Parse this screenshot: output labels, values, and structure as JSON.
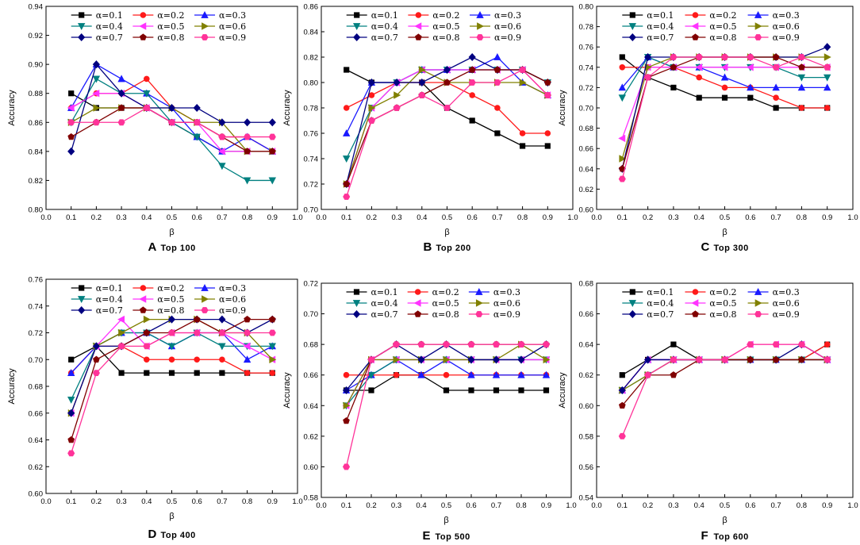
{
  "colors": {
    "a0.1": "#000000",
    "a0.2": "#ff1a1a",
    "a0.3": "#1a1aff",
    "a0.4": "#008080",
    "a0.5": "#ff33ff",
    "a0.6": "#808000",
    "a0.7": "#000080",
    "a0.8": "#800000",
    "a0.9": "#ff3399"
  },
  "chart_data": [
    {
      "type": "line",
      "letter": "A",
      "subtitle": "Top 100",
      "xlabel": "β",
      "ylabel": "Accuracy",
      "xlim": [
        0,
        1
      ],
      "ylim": [
        0.8,
        0.94
      ],
      "ystep": 0.02,
      "x": [
        0.1,
        0.2,
        0.3,
        0.4,
        0.5,
        0.6,
        0.7,
        0.8,
        0.9
      ],
      "series": [
        {
          "name": "α=0.1",
          "marker": "square",
          "values": [
            0.88,
            0.87,
            0.87,
            0.87,
            0.86,
            0.85,
            0.84,
            0.84,
            0.84
          ]
        },
        {
          "name": "α=0.2",
          "marker": "circle",
          "values": [
            0.87,
            0.88,
            0.88,
            0.89,
            0.87,
            0.86,
            0.85,
            0.85,
            0.84
          ]
        },
        {
          "name": "α=0.3",
          "marker": "triangle-up",
          "values": [
            0.87,
            0.9,
            0.89,
            0.88,
            0.87,
            0.85,
            0.84,
            0.85,
            0.84
          ]
        },
        {
          "name": "α=0.4",
          "marker": "triangle-down",
          "values": [
            0.86,
            0.89,
            0.88,
            0.88,
            0.86,
            0.85,
            0.83,
            0.82,
            0.82
          ]
        },
        {
          "name": "α=0.5",
          "marker": "triangle-left",
          "values": [
            0.87,
            0.88,
            0.88,
            0.87,
            0.86,
            0.86,
            0.84,
            0.84,
            0.84
          ]
        },
        {
          "name": "α=0.6",
          "marker": "triangle-right",
          "values": [
            0.86,
            0.87,
            0.87,
            0.87,
            0.87,
            0.86,
            0.86,
            0.84,
            0.84
          ]
        },
        {
          "name": "α=0.7",
          "marker": "diamond",
          "values": [
            0.84,
            0.9,
            0.88,
            0.87,
            0.87,
            0.87,
            0.86,
            0.86,
            0.86
          ]
        },
        {
          "name": "α=0.8",
          "marker": "pentagon",
          "values": [
            0.85,
            0.86,
            0.87,
            0.87,
            0.86,
            0.86,
            0.85,
            0.84,
            0.84
          ]
        },
        {
          "name": "α=0.9",
          "marker": "hexagon",
          "values": [
            0.86,
            0.86,
            0.86,
            0.87,
            0.86,
            0.86,
            0.85,
            0.85,
            0.85
          ]
        }
      ]
    },
    {
      "type": "line",
      "letter": "B",
      "subtitle": "Top 200",
      "xlabel": "β",
      "ylabel": "Accuracy",
      "xlim": [
        0,
        1
      ],
      "ylim": [
        0.7,
        0.86
      ],
      "ystep": 0.02,
      "x": [
        0.1,
        0.2,
        0.3,
        0.4,
        0.5,
        0.6,
        0.7,
        0.8,
        0.9
      ],
      "series": [
        {
          "name": "α=0.1",
          "marker": "square",
          "values": [
            0.81,
            0.8,
            0.8,
            0.8,
            0.78,
            0.77,
            0.76,
            0.75,
            0.75
          ]
        },
        {
          "name": "α=0.2",
          "marker": "circle",
          "values": [
            0.78,
            0.79,
            0.8,
            0.8,
            0.8,
            0.79,
            0.78,
            0.76,
            0.76
          ]
        },
        {
          "name": "α=0.3",
          "marker": "triangle-up",
          "values": [
            0.76,
            0.8,
            0.8,
            0.81,
            0.81,
            0.81,
            0.82,
            0.8,
            0.79
          ]
        },
        {
          "name": "α=0.4",
          "marker": "triangle-down",
          "values": [
            0.74,
            0.78,
            0.8,
            0.81,
            0.81,
            0.81,
            0.81,
            0.81,
            0.8
          ]
        },
        {
          "name": "α=0.5",
          "marker": "triangle-left",
          "values": [
            0.72,
            0.78,
            0.8,
            0.81,
            0.81,
            0.81,
            0.81,
            0.81,
            0.79
          ]
        },
        {
          "name": "α=0.6",
          "marker": "triangle-right",
          "values": [
            0.72,
            0.78,
            0.79,
            0.81,
            0.8,
            0.8,
            0.8,
            0.8,
            0.79
          ]
        },
        {
          "name": "α=0.7",
          "marker": "diamond",
          "values": [
            0.72,
            0.8,
            0.8,
            0.8,
            0.81,
            0.82,
            0.81,
            0.81,
            0.8
          ]
        },
        {
          "name": "α=0.8",
          "marker": "pentagon",
          "values": [
            0.72,
            0.77,
            0.78,
            0.79,
            0.8,
            0.81,
            0.81,
            0.81,
            0.8
          ]
        },
        {
          "name": "α=0.9",
          "marker": "hexagon",
          "values": [
            0.71,
            0.77,
            0.78,
            0.79,
            0.78,
            0.8,
            0.8,
            0.81,
            0.79
          ]
        }
      ]
    },
    {
      "type": "line",
      "letter": "C",
      "subtitle": "Top 300",
      "xlabel": "β",
      "ylabel": "Accuracy",
      "xlim": [
        0,
        1
      ],
      "ylim": [
        0.6,
        0.8
      ],
      "ystep": 0.02,
      "x": [
        0.1,
        0.2,
        0.3,
        0.4,
        0.5,
        0.6,
        0.7,
        0.8,
        0.9
      ],
      "series": [
        {
          "name": "α=0.1",
          "marker": "square",
          "values": [
            0.75,
            0.73,
            0.72,
            0.71,
            0.71,
            0.71,
            0.7,
            0.7,
            0.7
          ]
        },
        {
          "name": "α=0.2",
          "marker": "circle",
          "values": [
            0.74,
            0.74,
            0.74,
            0.73,
            0.72,
            0.72,
            0.71,
            0.7,
            0.7
          ]
        },
        {
          "name": "α=0.3",
          "marker": "triangle-up",
          "values": [
            0.72,
            0.75,
            0.74,
            0.74,
            0.73,
            0.72,
            0.72,
            0.72,
            0.72
          ]
        },
        {
          "name": "α=0.4",
          "marker": "triangle-down",
          "values": [
            0.71,
            0.75,
            0.74,
            0.74,
            0.74,
            0.74,
            0.74,
            0.73,
            0.73
          ]
        },
        {
          "name": "α=0.5",
          "marker": "triangle-left",
          "values": [
            0.67,
            0.74,
            0.74,
            0.74,
            0.74,
            0.74,
            0.74,
            0.74,
            0.74
          ]
        },
        {
          "name": "α=0.6",
          "marker": "triangle-right",
          "values": [
            0.65,
            0.74,
            0.75,
            0.75,
            0.75,
            0.75,
            0.75,
            0.75,
            0.75
          ]
        },
        {
          "name": "α=0.7",
          "marker": "diamond",
          "values": [
            0.64,
            0.75,
            0.75,
            0.75,
            0.75,
            0.75,
            0.75,
            0.75,
            0.76
          ]
        },
        {
          "name": "α=0.8",
          "marker": "pentagon",
          "values": [
            0.64,
            0.73,
            0.74,
            0.75,
            0.75,
            0.75,
            0.75,
            0.74,
            0.74
          ]
        },
        {
          "name": "α=0.9",
          "marker": "hexagon",
          "values": [
            0.63,
            0.73,
            0.75,
            0.75,
            0.75,
            0.75,
            0.74,
            0.75,
            0.74
          ]
        }
      ]
    },
    {
      "type": "line",
      "letter": "D",
      "subtitle": "Top 400",
      "xlabel": "β",
      "ylabel": "Accuracy",
      "xlim": [
        0,
        1
      ],
      "ylim": [
        0.6,
        0.76
      ],
      "ystep": 0.02,
      "x": [
        0.1,
        0.2,
        0.3,
        0.4,
        0.5,
        0.6,
        0.7,
        0.8,
        0.9
      ],
      "series": [
        {
          "name": "α=0.1",
          "marker": "square",
          "values": [
            0.7,
            0.71,
            0.69,
            0.69,
            0.69,
            0.69,
            0.69,
            0.69,
            0.69
          ]
        },
        {
          "name": "α=0.2",
          "marker": "circle",
          "values": [
            0.69,
            0.71,
            0.71,
            0.7,
            0.7,
            0.7,
            0.7,
            0.69,
            0.69
          ]
        },
        {
          "name": "α=0.3",
          "marker": "triangle-up",
          "values": [
            0.69,
            0.71,
            0.72,
            0.72,
            0.71,
            0.72,
            0.72,
            0.7,
            0.71
          ]
        },
        {
          "name": "α=0.4",
          "marker": "triangle-down",
          "values": [
            0.67,
            0.71,
            0.72,
            0.72,
            0.71,
            0.72,
            0.71,
            0.71,
            0.71
          ]
        },
        {
          "name": "α=0.5",
          "marker": "triangle-left",
          "values": [
            0.66,
            0.71,
            0.73,
            0.71,
            0.72,
            0.72,
            0.72,
            0.71,
            0.7
          ]
        },
        {
          "name": "α=0.6",
          "marker": "triangle-right",
          "values": [
            0.66,
            0.71,
            0.72,
            0.73,
            0.73,
            0.73,
            0.72,
            0.72,
            0.7
          ]
        },
        {
          "name": "α=0.7",
          "marker": "diamond",
          "values": [
            0.66,
            0.71,
            0.71,
            0.72,
            0.73,
            0.73,
            0.73,
            0.72,
            0.73
          ]
        },
        {
          "name": "α=0.8",
          "marker": "pentagon",
          "values": [
            0.64,
            0.7,
            0.71,
            0.72,
            0.72,
            0.73,
            0.72,
            0.73,
            0.73
          ]
        },
        {
          "name": "α=0.9",
          "marker": "hexagon",
          "values": [
            0.63,
            0.69,
            0.71,
            0.71,
            0.72,
            0.72,
            0.72,
            0.72,
            0.72
          ]
        }
      ]
    },
    {
      "type": "line",
      "letter": "E",
      "subtitle": "Top 500",
      "xlabel": "β",
      "ylabel": "Accuracy",
      "xlim": [
        0,
        1
      ],
      "ylim": [
        0.58,
        0.72
      ],
      "ystep": 0.02,
      "x": [
        0.1,
        0.2,
        0.3,
        0.4,
        0.5,
        0.6,
        0.7,
        0.8,
        0.9
      ],
      "series": [
        {
          "name": "α=0.1",
          "marker": "square",
          "values": [
            0.65,
            0.65,
            0.66,
            0.66,
            0.65,
            0.65,
            0.65,
            0.65,
            0.65
          ]
        },
        {
          "name": "α=0.2",
          "marker": "circle",
          "values": [
            0.66,
            0.66,
            0.66,
            0.66,
            0.66,
            0.66,
            0.66,
            0.66,
            0.66
          ]
        },
        {
          "name": "α=0.3",
          "marker": "triangle-up",
          "values": [
            0.65,
            0.66,
            0.67,
            0.66,
            0.67,
            0.66,
            0.66,
            0.66,
            0.66
          ]
        },
        {
          "name": "α=0.4",
          "marker": "triangle-down",
          "values": [
            0.64,
            0.66,
            0.67,
            0.67,
            0.67,
            0.67,
            0.67,
            0.67,
            0.67
          ]
        },
        {
          "name": "α=0.5",
          "marker": "triangle-left",
          "values": [
            0.64,
            0.67,
            0.67,
            0.67,
            0.67,
            0.67,
            0.67,
            0.67,
            0.67
          ]
        },
        {
          "name": "α=0.6",
          "marker": "triangle-right",
          "values": [
            0.64,
            0.67,
            0.67,
            0.67,
            0.67,
            0.67,
            0.67,
            0.68,
            0.67
          ]
        },
        {
          "name": "α=0.7",
          "marker": "diamond",
          "values": [
            0.65,
            0.67,
            0.68,
            0.67,
            0.68,
            0.67,
            0.67,
            0.67,
            0.68
          ]
        },
        {
          "name": "α=0.8",
          "marker": "pentagon",
          "values": [
            0.63,
            0.67,
            0.68,
            0.68,
            0.68,
            0.68,
            0.68,
            0.68,
            0.68
          ]
        },
        {
          "name": "α=0.9",
          "marker": "hexagon",
          "values": [
            0.6,
            0.67,
            0.68,
            0.68,
            0.68,
            0.68,
            0.68,
            0.68,
            0.68
          ]
        }
      ]
    },
    {
      "type": "line",
      "letter": "F",
      "subtitle": "Top 600",
      "xlabel": "β",
      "ylabel": "Accuracy",
      "xlim": [
        0,
        1
      ],
      "ylim": [
        0.54,
        0.68
      ],
      "ystep": 0.02,
      "x": [
        0.1,
        0.2,
        0.3,
        0.4,
        0.5,
        0.6,
        0.7,
        0.8,
        0.9
      ],
      "series": [
        {
          "name": "α=0.1",
          "marker": "square",
          "values": [
            0.62,
            0.63,
            0.64,
            0.63,
            0.63,
            0.63,
            0.63,
            0.63,
            0.64
          ]
        },
        {
          "name": "α=0.2",
          "marker": "circle",
          "values": [
            0.61,
            0.63,
            0.63,
            0.63,
            0.63,
            0.63,
            0.63,
            0.63,
            0.64
          ]
        },
        {
          "name": "α=0.3",
          "marker": "triangle-up",
          "values": [
            0.61,
            0.63,
            0.63,
            0.63,
            0.63,
            0.63,
            0.63,
            0.63,
            0.63
          ]
        },
        {
          "name": "α=0.4",
          "marker": "triangle-down",
          "values": [
            0.61,
            0.62,
            0.63,
            0.63,
            0.63,
            0.63,
            0.63,
            0.63,
            0.63
          ]
        },
        {
          "name": "α=0.5",
          "marker": "triangle-left",
          "values": [
            0.61,
            0.63,
            0.63,
            0.63,
            0.63,
            0.64,
            0.64,
            0.64,
            0.63
          ]
        },
        {
          "name": "α=0.6",
          "marker": "triangle-right",
          "values": [
            0.61,
            0.62,
            0.63,
            0.63,
            0.63,
            0.63,
            0.63,
            0.63,
            0.63
          ]
        },
        {
          "name": "α=0.7",
          "marker": "diamond",
          "values": [
            0.61,
            0.63,
            0.63,
            0.63,
            0.63,
            0.63,
            0.63,
            0.64,
            0.63
          ]
        },
        {
          "name": "α=0.8",
          "marker": "pentagon",
          "values": [
            0.6,
            0.62,
            0.62,
            0.63,
            0.63,
            0.63,
            0.63,
            0.63,
            0.63
          ]
        },
        {
          "name": "α=0.9",
          "marker": "hexagon",
          "values": [
            0.58,
            0.62,
            0.63,
            0.63,
            0.63,
            0.64,
            0.64,
            0.64,
            0.63
          ]
        }
      ]
    }
  ]
}
